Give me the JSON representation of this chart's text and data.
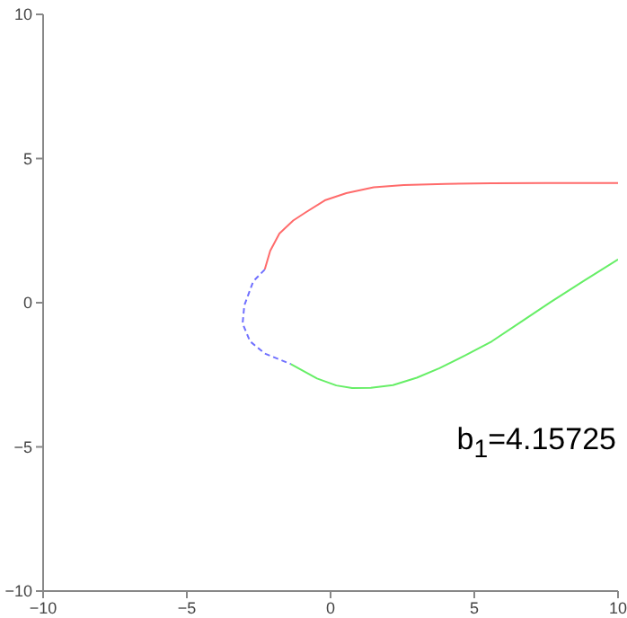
{
  "chart_data": {
    "type": "line",
    "xlim": [
      -10,
      10
    ],
    "ylim": [
      -10,
      10
    ],
    "xticks": [
      -10,
      -5,
      0,
      5,
      10
    ],
    "yticks": [
      -10,
      -5,
      0,
      5,
      10
    ],
    "marker": "none",
    "annotations": [
      "b$_{1}$=4.15725"
    ],
    "series": [
      {
        "color": "#ff6b6b",
        "line_style": "solid",
        "x": [
          -2.29,
          -2.1,
          -1.78,
          -1.3,
          -0.87,
          -0.2,
          0.55,
          1.5,
          2.55,
          4,
          5.6,
          7.5,
          10
        ],
        "values": [
          1.15,
          1.8,
          2.4,
          2.85,
          3.13,
          3.55,
          3.8,
          4,
          4.08,
          4.12,
          4.14,
          4.15,
          4.15
        ]
      },
      {
        "color": "#7070ff",
        "line_style": "dashed",
        "x": [
          -2.29,
          -2.69,
          -3.0,
          -3.06,
          -2.8,
          -2.29,
          -1.38
        ],
        "values": [
          1.15,
          0.74,
          -0.09,
          -0.72,
          -1.34,
          -1.76,
          -2.13
        ]
      },
      {
        "color": "#66ee66",
        "line_style": "solid",
        "x": [
          -1.38,
          -0.47,
          0.2,
          0.75,
          1.4,
          2.17,
          3.0,
          3.79,
          4.7,
          5.61,
          6.6,
          7.64,
          8.8,
          10
        ],
        "values": [
          -2.13,
          -2.63,
          -2.87,
          -2.96,
          -2.95,
          -2.86,
          -2.6,
          -2.27,
          -1.82,
          -1.34,
          -0.68,
          0.01,
          0.75,
          1.5
        ]
      }
    ]
  }
}
